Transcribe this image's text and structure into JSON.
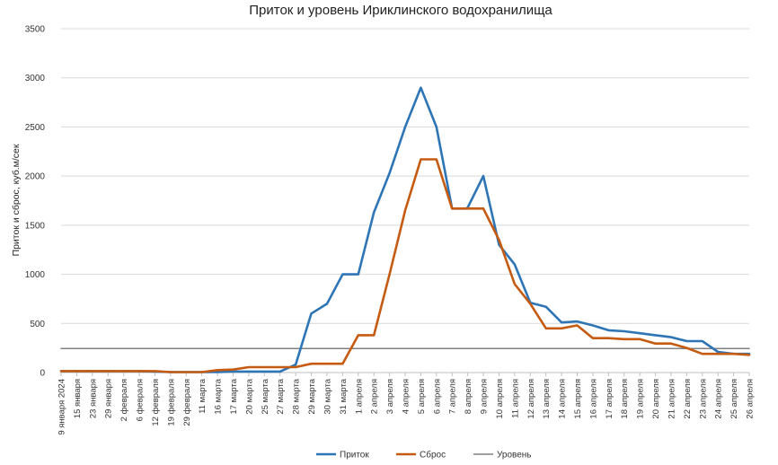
{
  "chart_data": {
    "type": "line",
    "title": "Приток и уровень Ириклинского водохранилища",
    "xlabel": "",
    "ylabel": "Приток и сброс, куб.м/сек",
    "ylim": [
      0,
      3500
    ],
    "yticks": [
      0,
      500,
      1000,
      1500,
      2000,
      2500,
      3000,
      3500
    ],
    "grid": "horizontal",
    "legend_position": "bottom",
    "categories": [
      "9 января 2024",
      "15 января",
      "23 января",
      "29 января",
      "2 февраля",
      "6 февраля",
      "12 февраля",
      "19 февраля",
      "29 февраля",
      "11 марта",
      "16 марта",
      "17 марта",
      "20 марта",
      "25 марта",
      "27 марта",
      "28 марта",
      "29 марта",
      "30 марта",
      "31 марта",
      "1 апреля",
      "2 апреля",
      "3 апреля",
      "4 апреля",
      "5 апреля",
      "6 апреля",
      "7 апреля",
      "8 апреля",
      "9 апреля",
      "10 апреля",
      "11 апреля",
      "12 апреля",
      "13 апреля",
      "14 апреля",
      "15 апреля",
      "16 апреля",
      "17 апреля",
      "18 апреля",
      "19 апреля",
      "20 апреля",
      "21 апреля",
      "22 апреля",
      "23 апреля",
      "24 апреля",
      "25 апреля",
      "26 апреля"
    ],
    "x": [
      0,
      1,
      2,
      3,
      4,
      5,
      6,
      7,
      8,
      9,
      10,
      11,
      12,
      13,
      14,
      15,
      16,
      17,
      18,
      19,
      20,
      21,
      22,
      23,
      24,
      25,
      26,
      27,
      28,
      29,
      30,
      31,
      32,
      33,
      34,
      35,
      36,
      37,
      38,
      39,
      40,
      41,
      42,
      43,
      44
    ],
    "series": [
      {
        "name": "Приток",
        "color": "#2e75b6",
        "x": [
          0,
          1,
          2,
          3,
          4,
          5,
          6,
          7,
          8,
          9,
          10,
          11,
          12,
          13,
          14,
          15,
          16,
          17,
          18,
          19,
          20,
          21,
          22,
          23,
          24,
          25,
          25.9,
          26,
          27,
          28,
          29,
          30,
          31,
          32,
          33,
          34,
          35,
          36,
          37,
          38,
          39,
          40,
          41,
          42,
          43,
          44
        ],
        "values": [
          15,
          15,
          15,
          15,
          15,
          15,
          10,
          5,
          5,
          5,
          5,
          10,
          10,
          10,
          10,
          80,
          600,
          700,
          1000,
          1000,
          1630,
          2030,
          2500,
          2900,
          2500,
          1670,
          1670,
          1680,
          2000,
          1300,
          1100,
          710,
          670,
          510,
          520,
          480,
          430,
          420,
          400,
          380,
          360,
          320,
          320,
          210,
          190,
          190
        ]
      },
      {
        "name": "Сброс",
        "color": "#c55a11",
        "x": [
          0,
          1,
          2,
          3,
          4,
          5,
          6,
          7,
          8,
          9,
          10,
          11,
          12,
          13,
          14,
          15,
          16,
          17,
          18,
          19,
          20,
          21,
          22,
          23,
          24,
          25,
          26,
          27,
          28,
          29,
          30,
          31,
          32,
          33,
          34,
          35,
          36,
          37,
          38,
          39,
          40,
          41,
          42,
          43,
          44
        ],
        "values": [
          15,
          15,
          15,
          15,
          15,
          15,
          15,
          5,
          5,
          5,
          25,
          30,
          55,
          55,
          55,
          55,
          90,
          90,
          90,
          380,
          380,
          1000,
          1650,
          2170,
          2170,
          1670,
          1670,
          1670,
          1350,
          900,
          700,
          450,
          450,
          480,
          350,
          350,
          340,
          340,
          295,
          295,
          250,
          190,
          190,
          190,
          180
        ]
      },
      {
        "name": "Уровень",
        "color": "#808080",
        "x": [
          0,
          44
        ],
        "values": [
          245,
          245
        ]
      }
    ]
  }
}
